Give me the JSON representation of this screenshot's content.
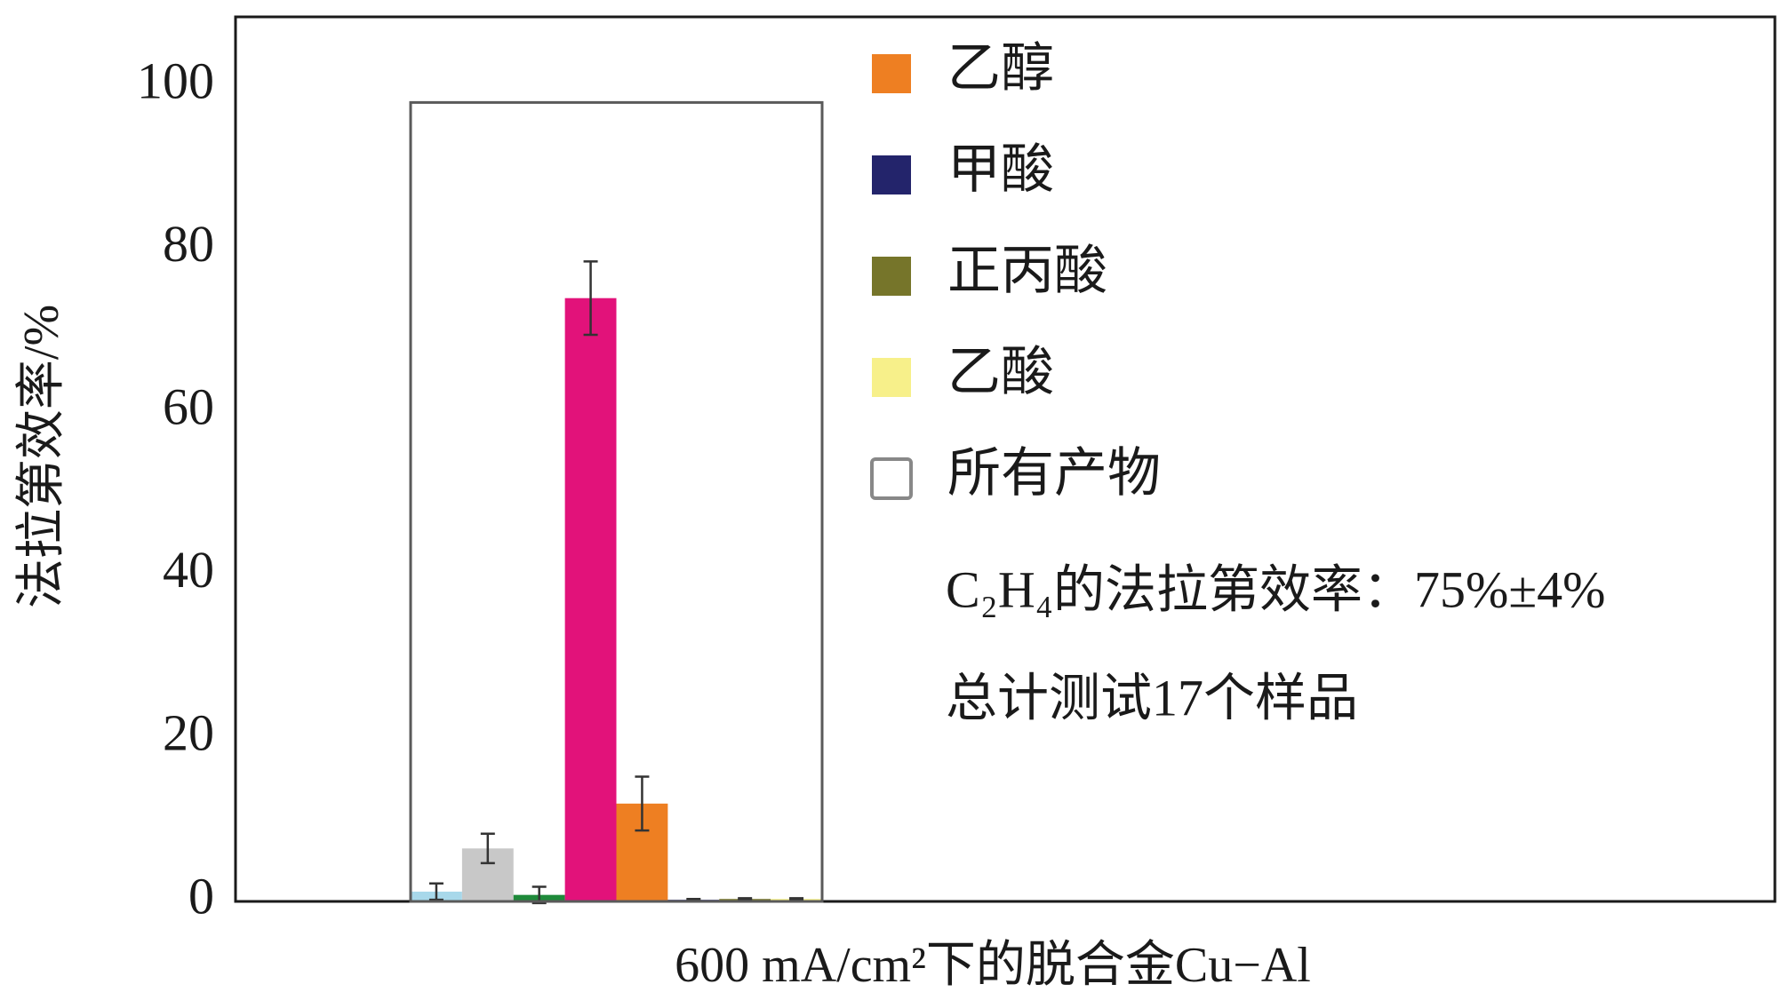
{
  "chart_data": {
    "type": "bar",
    "ylabel": "法拉第效率/%",
    "xlabel": "600 mA/cm²下的脱合金Cu−Al",
    "categories": [
      null
    ],
    "ylim": [
      0,
      108.5
    ],
    "yticks": [
      0,
      20,
      40,
      60,
      80,
      100
    ],
    "grid": false,
    "series": [
      {
        "color": "#a8d8ea",
        "values": [
          1.2
        ],
        "errors": [
          1.0
        ]
      },
      {
        "color": "#c8c8c8",
        "values": [
          6.5
        ],
        "errors": [
          1.8
        ]
      },
      {
        "color": "#1e8a3a",
        "values": [
          0.8
        ],
        "errors": [
          1.0
        ]
      },
      {
        "color": "#e2127a",
        "values": [
          74
        ],
        "errors": [
          4.5
        ]
      },
      {
        "name": "乙醇",
        "color": "#ee7f22",
        "values": [
          12
        ],
        "errors": [
          3.3
        ]
      },
      {
        "name": "甲酸",
        "color": "#23246b",
        "values": [
          0.2
        ],
        "errors": [
          0.1
        ]
      },
      {
        "name": "正丙酸",
        "color": "#76752a",
        "values": [
          0.3
        ],
        "errors": [
          0.1
        ]
      },
      {
        "name": "乙酸",
        "color": "#f7f08a",
        "values": [
          0.3
        ],
        "errors": [
          0.1
        ]
      },
      {
        "name": "所有产物",
        "color": "#5a5a5a",
        "values": [
          98
        ],
        "outline": true
      }
    ],
    "annotations": [
      "C₂H₄的法拉第效率：75%±4%",
      "总计测试17个样品"
    ]
  }
}
